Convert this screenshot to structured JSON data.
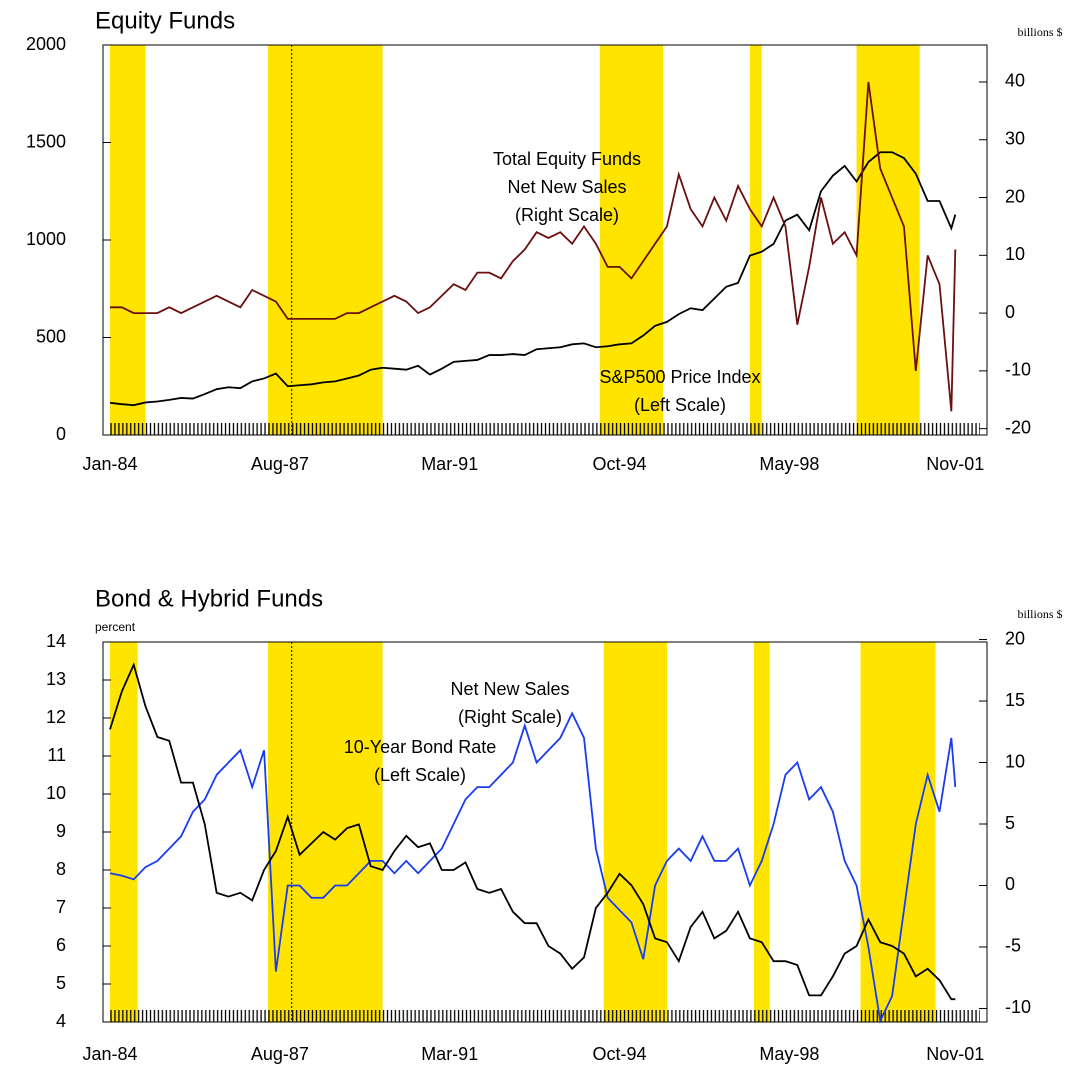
{
  "chart_data": [
    {
      "type": "line",
      "title": "Equity Funds",
      "y2label": "billions $",
      "x": [
        "Jan-84",
        "Apr-84",
        "Jul-84",
        "Oct-84",
        "Jan-85",
        "Apr-85",
        "Jul-85",
        "Oct-85",
        "Jan-86",
        "Apr-86",
        "Jul-86",
        "Oct-86",
        "Jan-87",
        "Apr-87",
        "Jul-87",
        "Oct-87",
        "Jan-88",
        "Apr-88",
        "Jul-88",
        "Oct-88",
        "Jan-89",
        "Apr-89",
        "Jul-89",
        "Oct-89",
        "Jan-90",
        "Apr-90",
        "Jul-90",
        "Oct-90",
        "Jan-91",
        "Apr-91",
        "Jul-91",
        "Oct-91",
        "Jan-92",
        "Apr-92",
        "Jul-92",
        "Oct-92",
        "Jan-93",
        "Apr-93",
        "Jul-93",
        "Oct-93",
        "Jan-94",
        "Apr-94",
        "Jul-94",
        "Oct-94",
        "Jan-95",
        "Apr-95",
        "Jul-95",
        "Oct-95",
        "Jan-96",
        "Apr-96",
        "Jul-96",
        "Oct-96",
        "Jan-97",
        "Apr-97",
        "Jul-97",
        "Oct-97",
        "Jan-98",
        "Apr-98",
        "Jul-98",
        "Oct-98",
        "Jan-99",
        "Apr-99",
        "Jul-99",
        "Oct-99",
        "Jan-00",
        "Apr-00",
        "Jul-00",
        "Oct-00",
        "Jan-01",
        "Apr-01",
        "Jul-01",
        "Oct-01",
        "Nov-01"
      ],
      "series": [
        {
          "name": "S&P500 Price Index",
          "label_lines": [
            "S&P500 Price Index",
            "(Left Scale)"
          ],
          "color": "#000000",
          "axis": "y",
          "values": [
            165,
            158,
            153,
            167,
            172,
            180,
            190,
            187,
            210,
            235,
            245,
            240,
            275,
            290,
            315,
            250,
            255,
            260,
            270,
            275,
            290,
            305,
            335,
            345,
            340,
            335,
            355,
            310,
            340,
            375,
            380,
            385,
            410,
            410,
            415,
            410,
            440,
            445,
            450,
            465,
            470,
            450,
            455,
            465,
            470,
            510,
            560,
            580,
            620,
            650,
            640,
            700,
            760,
            780,
            920,
            940,
            980,
            1100,
            1130,
            1050,
            1250,
            1330,
            1380,
            1300,
            1400,
            1450,
            1450,
            1420,
            1340,
            1200,
            1200,
            1060,
            1130
          ]
        },
        {
          "name": "Total Equity Funds Net New Sales",
          "label_lines": [
            "Total Equity Funds",
            "Net New Sales",
            "(Right Scale)"
          ],
          "color": "#6b0f0f",
          "axis": "y2",
          "values": [
            1,
            1,
            0,
            0,
            0,
            1,
            0,
            1,
            2,
            3,
            2,
            1,
            4,
            3,
            2,
            -1,
            -1,
            -1,
            -1,
            -1,
            0,
            0,
            1,
            2,
            3,
            2,
            0,
            1,
            3,
            5,
            4,
            7,
            7,
            6,
            9,
            11,
            14,
            13,
            14,
            12,
            15,
            12,
            8,
            8,
            6,
            9,
            12,
            15,
            24,
            18,
            15,
            20,
            16,
            22,
            18,
            15,
            20,
            15,
            -2,
            8,
            20,
            12,
            14,
            10,
            40,
            25,
            20,
            15,
            -10,
            10,
            5,
            -17,
            11
          ]
        }
      ],
      "shaded_periods": [
        [
          "Jan-84",
          "Oct-84"
        ],
        [
          "May-87",
          "Oct-89"
        ],
        [
          "May-94",
          "Sep-95"
        ],
        [
          "Jul-97",
          "Oct-97"
        ],
        [
          "Oct-99",
          "Feb-01"
        ]
      ],
      "shade_color": "#ffe400",
      "marker_line": "Nov-87",
      "xticks": [
        "Jan-84",
        "Aug-87",
        "Mar-91",
        "Oct-94",
        "May-98",
        "Nov-01"
      ],
      "ylim": [
        0,
        2000
      ],
      "yticks": [
        0,
        500,
        1000,
        1500,
        2000
      ],
      "y2lim": [
        -21.1,
        46.4
      ],
      "y2ticks": [
        -20,
        -10,
        0,
        10,
        20,
        30,
        40
      ]
    },
    {
      "type": "line",
      "title": "Bond & Hybrid Funds",
      "ylabel": "percent",
      "y2label": "billions $",
      "x": [
        "Jan-84",
        "Apr-84",
        "Jul-84",
        "Oct-84",
        "Jan-85",
        "Apr-85",
        "Jul-85",
        "Oct-85",
        "Jan-86",
        "Apr-86",
        "Jul-86",
        "Oct-86",
        "Jan-87",
        "Apr-87",
        "Jul-87",
        "Oct-87",
        "Jan-88",
        "Apr-88",
        "Jul-88",
        "Oct-88",
        "Jan-89",
        "Apr-89",
        "Jul-89",
        "Oct-89",
        "Jan-90",
        "Apr-90",
        "Jul-90",
        "Oct-90",
        "Jan-91",
        "Apr-91",
        "Jul-91",
        "Oct-91",
        "Jan-92",
        "Apr-92",
        "Jul-92",
        "Oct-92",
        "Jan-93",
        "Apr-93",
        "Jul-93",
        "Oct-93",
        "Jan-94",
        "Apr-94",
        "Jul-94",
        "Oct-94",
        "Jan-95",
        "Apr-95",
        "Jul-95",
        "Oct-95",
        "Jan-96",
        "Apr-96",
        "Jul-96",
        "Oct-96",
        "Jan-97",
        "Apr-97",
        "Jul-97",
        "Oct-97",
        "Jan-98",
        "Apr-98",
        "Jul-98",
        "Oct-98",
        "Jan-99",
        "Apr-99",
        "Jul-99",
        "Oct-99",
        "Jan-00",
        "Apr-00",
        "Jul-00",
        "Oct-00",
        "Jan-01",
        "Apr-01",
        "Jul-01",
        "Oct-01",
        "Nov-01"
      ],
      "series": [
        {
          "name": "Net New Sales",
          "label_lines": [
            "Net New Sales",
            "(Right Scale)"
          ],
          "color": "#1a3cf0",
          "axis": "y2",
          "values": [
            1,
            0.8,
            0.5,
            1.5,
            2,
            3,
            4,
            6,
            7,
            9,
            10,
            11,
            8,
            11,
            -7,
            0,
            0,
            -1,
            -1,
            0,
            0,
            1,
            2,
            2,
            1,
            2,
            1,
            2,
            3,
            5,
            7,
            8,
            8,
            9,
            10,
            13,
            10,
            11,
            12,
            14,
            12,
            3,
            -1,
            -2,
            -3,
            -6,
            0,
            2,
            3,
            2,
            4,
            2,
            2,
            3,
            0,
            2,
            5,
            9,
            10,
            7,
            8,
            6,
            2,
            0,
            -5,
            -11,
            -9,
            -2,
            5,
            9,
            6,
            12,
            8
          ]
        },
        {
          "name": "10-Year Bond Rate",
          "label_lines": [
            "10-Year Bond Rate",
            "(Left Scale)"
          ],
          "color": "#000000",
          "axis": "y",
          "values": [
            11.7,
            12.7,
            13.4,
            12.3,
            11.5,
            11.4,
            10.3,
            10.3,
            9.2,
            7.4,
            7.3,
            7.4,
            7.2,
            8.0,
            8.5,
            9.4,
            8.4,
            8.7,
            9.0,
            8.8,
            9.1,
            9.2,
            8.1,
            8.0,
            8.5,
            8.9,
            8.6,
            8.7,
            8.0,
            8.0,
            8.2,
            7.5,
            7.4,
            7.5,
            6.9,
            6.6,
            6.6,
            6.0,
            5.8,
            5.4,
            5.7,
            7.0,
            7.4,
            7.9,
            7.6,
            7.1,
            6.2,
            6.1,
            5.6,
            6.5,
            6.9,
            6.2,
            6.4,
            6.9,
            6.2,
            6.1,
            5.6,
            5.6,
            5.5,
            4.7,
            4.7,
            5.2,
            5.8,
            6.0,
            6.7,
            6.1,
            6.0,
            5.8,
            5.2,
            5.4,
            5.1,
            4.6,
            4.6
          ]
        }
      ],
      "shaded_periods": [
        [
          "Jan-84",
          "Aug-84"
        ],
        [
          "May-87",
          "Oct-89"
        ],
        [
          "Jun-94",
          "Oct-95"
        ],
        [
          "Aug-97",
          "Dec-97"
        ],
        [
          "Nov-99",
          "Jun-01"
        ]
      ],
      "shade_color": "#ffe400",
      "marker_line": "Nov-87",
      "xticks": [
        "Jan-84",
        "Aug-87",
        "Mar-91",
        "Oct-94",
        "May-98",
        "Nov-01"
      ],
      "ylim": [
        4,
        14
      ],
      "yticks": [
        4,
        5,
        6,
        7,
        8,
        9,
        10,
        11,
        12,
        13,
        14
      ],
      "y2lim": [
        -11.1,
        19.8
      ],
      "y2ticks": [
        -10,
        -5,
        0,
        5,
        10,
        15,
        20
      ]
    }
  ]
}
